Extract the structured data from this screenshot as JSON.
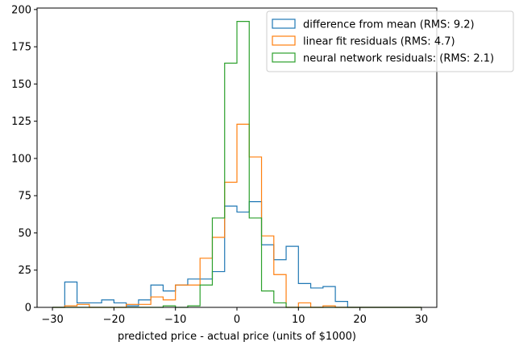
{
  "chart_data": {
    "type": "histogram",
    "xlabel": "predicted price - actual price (units of $1000)",
    "ylabel": "",
    "xlim": [
      -32.5,
      32.5
    ],
    "ylim": [
      0,
      201
    ],
    "x_ticks": [
      -30,
      -20,
      -10,
      0,
      10,
      20,
      30
    ],
    "x_tick_labels": [
      "−30",
      "−20",
      "−10",
      "0",
      "10",
      "20",
      "30"
    ],
    "y_ticks": [
      0,
      25,
      50,
      75,
      100,
      125,
      150,
      175,
      200
    ],
    "y_tick_labels": [
      "0",
      "25",
      "50",
      "75",
      "100",
      "125",
      "150",
      "175",
      "200"
    ],
    "bin_edges": [
      -30,
      -28,
      -26,
      -24,
      -22,
      -20,
      -18,
      -16,
      -14,
      -12,
      -10,
      -8,
      -6,
      -4,
      -2,
      0,
      2,
      4,
      6,
      8,
      10,
      12,
      14,
      16,
      18,
      20,
      22,
      24,
      26,
      28,
      30
    ],
    "grid": false,
    "legend_position": "top-right",
    "series": [
      {
        "name": "difference from mean (RMS: 9.2)",
        "color": "#1f77b4",
        "values": [
          0,
          17,
          3,
          3,
          5,
          3,
          1,
          5,
          15,
          11,
          15,
          19,
          19,
          24,
          68,
          64,
          71,
          42,
          32,
          41,
          16,
          13,
          14,
          4,
          0,
          0,
          0,
          0,
          0,
          0
        ]
      },
      {
        "name": "linear fit residuals (RMS: 4.7)",
        "color": "#ff7f0e",
        "values": [
          0,
          1,
          2,
          0,
          0,
          0,
          2,
          2,
          7,
          5,
          15,
          15,
          33,
          47,
          84,
          123,
          101,
          48,
          22,
          0,
          3,
          0,
          1,
          0,
          0,
          0,
          0,
          0,
          0,
          0
        ]
      },
      {
        "name": "neural network residuals: (RMS: 2.1)",
        "color": "#2ca02c",
        "values": [
          0,
          0,
          0,
          0,
          0,
          0,
          0,
          0,
          0,
          1,
          0,
          1,
          15,
          60,
          164,
          192,
          60,
          11,
          3,
          0,
          0,
          0,
          0,
          0,
          0,
          0,
          0,
          0,
          0,
          0
        ]
      }
    ]
  }
}
